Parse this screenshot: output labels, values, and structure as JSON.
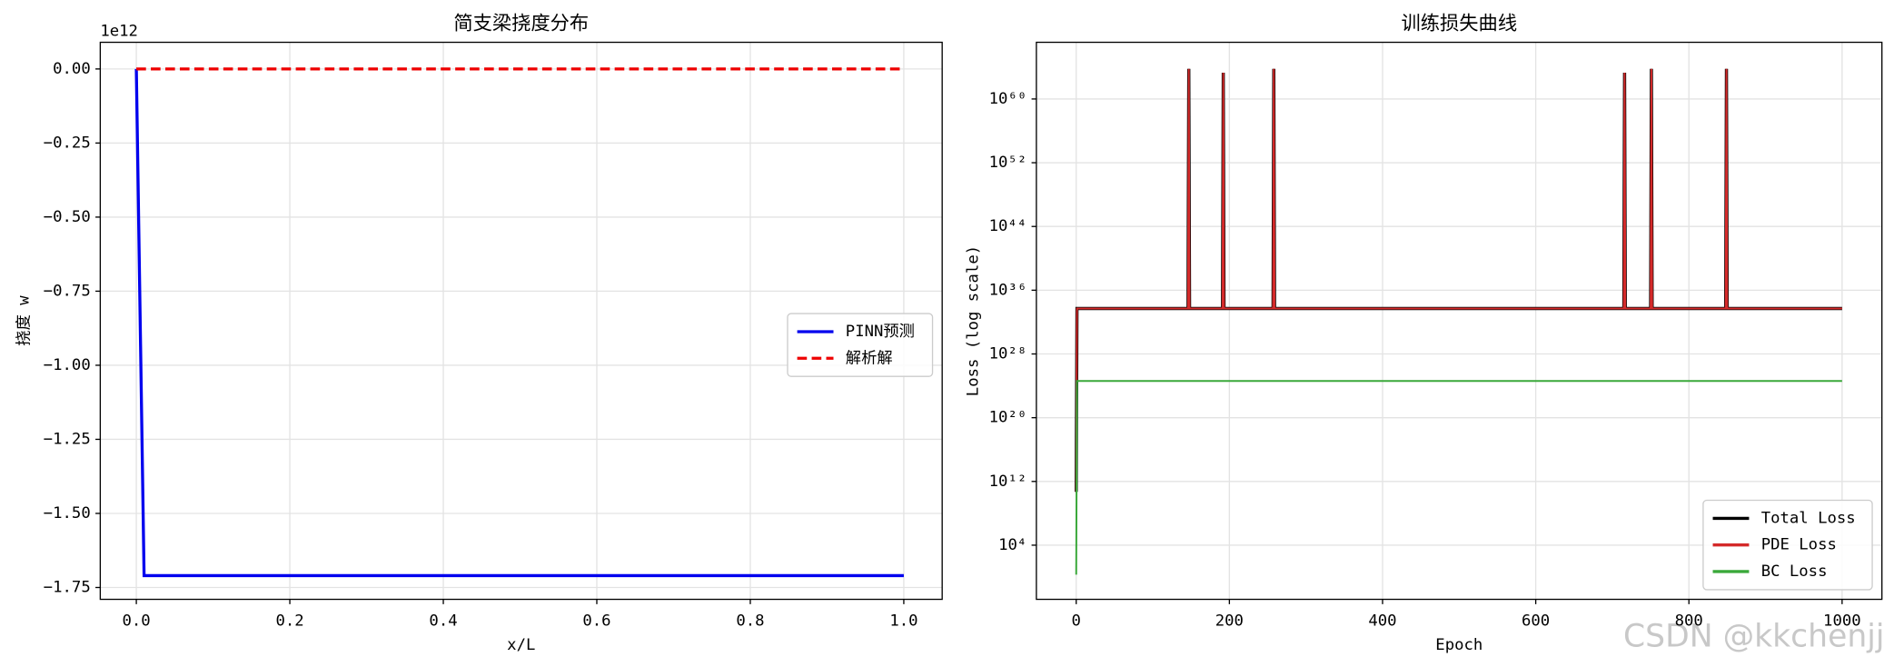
{
  "chart_data": [
    {
      "type": "line",
      "title": "简支梁挠度分布",
      "x_label": "x/L",
      "y_label": "挠度 w",
      "y_offset_text": "1e12",
      "xlim": [
        -0.047,
        1.05
      ],
      "ylim": [
        -1.79,
        0.09
      ],
      "log_y": false,
      "grid": true,
      "legend": "center right",
      "xticks": [
        {
          "value": 0,
          "label": "0.0"
        },
        {
          "value": 0.2,
          "label": "0.2"
        },
        {
          "value": 0.4,
          "label": "0.4"
        },
        {
          "value": 0.6,
          "label": "0.6"
        },
        {
          "value": 0.8,
          "label": "0.8"
        },
        {
          "value": 1,
          "label": "1.0"
        }
      ],
      "yticks": [
        {
          "value": 0,
          "label": "0.00"
        },
        {
          "value": -0.25,
          "label": "−0.25"
        },
        {
          "value": -0.5,
          "label": "−0.50"
        },
        {
          "value": -0.75,
          "label": "−0.75"
        },
        {
          "value": -1,
          "label": "−1.00"
        },
        {
          "value": -1.25,
          "label": "−1.25"
        },
        {
          "value": -1.5,
          "label": "−1.50"
        },
        {
          "value": -1.75,
          "label": "−1.75"
        }
      ],
      "series": [
        {
          "name": "PINN预测",
          "color": "#0000ee",
          "dash": false,
          "x": [
            0,
            0.0101,
            1
          ],
          "values": [
            0,
            -1.71,
            -1.71
          ]
        },
        {
          "name": "解析解",
          "color": "#ee0000",
          "dash": true,
          "x": [
            0,
            1
          ],
          "values": [
            0,
            0
          ]
        }
      ]
    },
    {
      "type": "line",
      "title": "训练损失曲线",
      "x_label": "Epoch",
      "y_label": "Loss (log scale)",
      "xlim": [
        -52,
        1052
      ],
      "ylim": [
        0.0016,
        1.3e+67
      ],
      "log_y": true,
      "grid": true,
      "legend": "lower right",
      "xticks": [
        0,
        200,
        400,
        600,
        800,
        1000
      ],
      "yticks": [
        {
          "value": 10000.0,
          "label": "10⁴"
        },
        {
          "value": 1000000000000.0,
          "label": "10¹²"
        },
        {
          "value": 1e+20,
          "label": "10²⁰"
        },
        {
          "value": 1e+28,
          "label": "10²⁸"
        },
        {
          "value": 1e+36,
          "label": "10³⁶"
        },
        {
          "value": 1e+44,
          "label": "10⁴⁴"
        },
        {
          "value": 1e+52,
          "label": "10⁵²"
        },
        {
          "value": 1e+60,
          "label": "10⁶⁰"
        }
      ],
      "series": [
        {
          "name": "Total Loss",
          "color": "#000000",
          "dash": false,
          "x": [
            0,
            1,
            146,
            147,
            148,
            191,
            192,
            193,
            257,
            258,
            259,
            715,
            716,
            717,
            750,
            751,
            752,
            848,
            849,
            850,
            1000
          ],
          "values": [
            50000000000.0,
            5e+33,
            5e+33,
            6e+63,
            5e+33,
            5e+33,
            2e+63,
            5e+33,
            5e+33,
            6e+63,
            5e+33,
            5e+33,
            2e+63,
            5e+33,
            5e+33,
            6e+63,
            5e+33,
            5e+33,
            6e+63,
            5e+33,
            5e+33
          ]
        },
        {
          "name": "PDE Loss",
          "color": "#d42a2a",
          "dash": false,
          "x": [
            0,
            1,
            146,
            147,
            148,
            191,
            192,
            193,
            257,
            258,
            259,
            715,
            716,
            717,
            750,
            751,
            752,
            848,
            849,
            850,
            1000
          ],
          "values": [
            50000000000.0,
            5e+33,
            5e+33,
            6e+63,
            5e+33,
            5e+33,
            2e+63,
            5e+33,
            5e+33,
            6e+63,
            5e+33,
            5e+33,
            2e+63,
            5e+33,
            5e+33,
            6e+63,
            5e+33,
            5e+33,
            6e+63,
            5e+33,
            5e+33
          ]
        },
        {
          "name": "BC Loss",
          "color": "#3aa83a",
          "dash": false,
          "x": [
            0,
            1,
            1000
          ],
          "values": [
            2,
            4e+24,
            4e+24
          ]
        }
      ]
    }
  ],
  "watermark": "CSDN @kkchenjj"
}
